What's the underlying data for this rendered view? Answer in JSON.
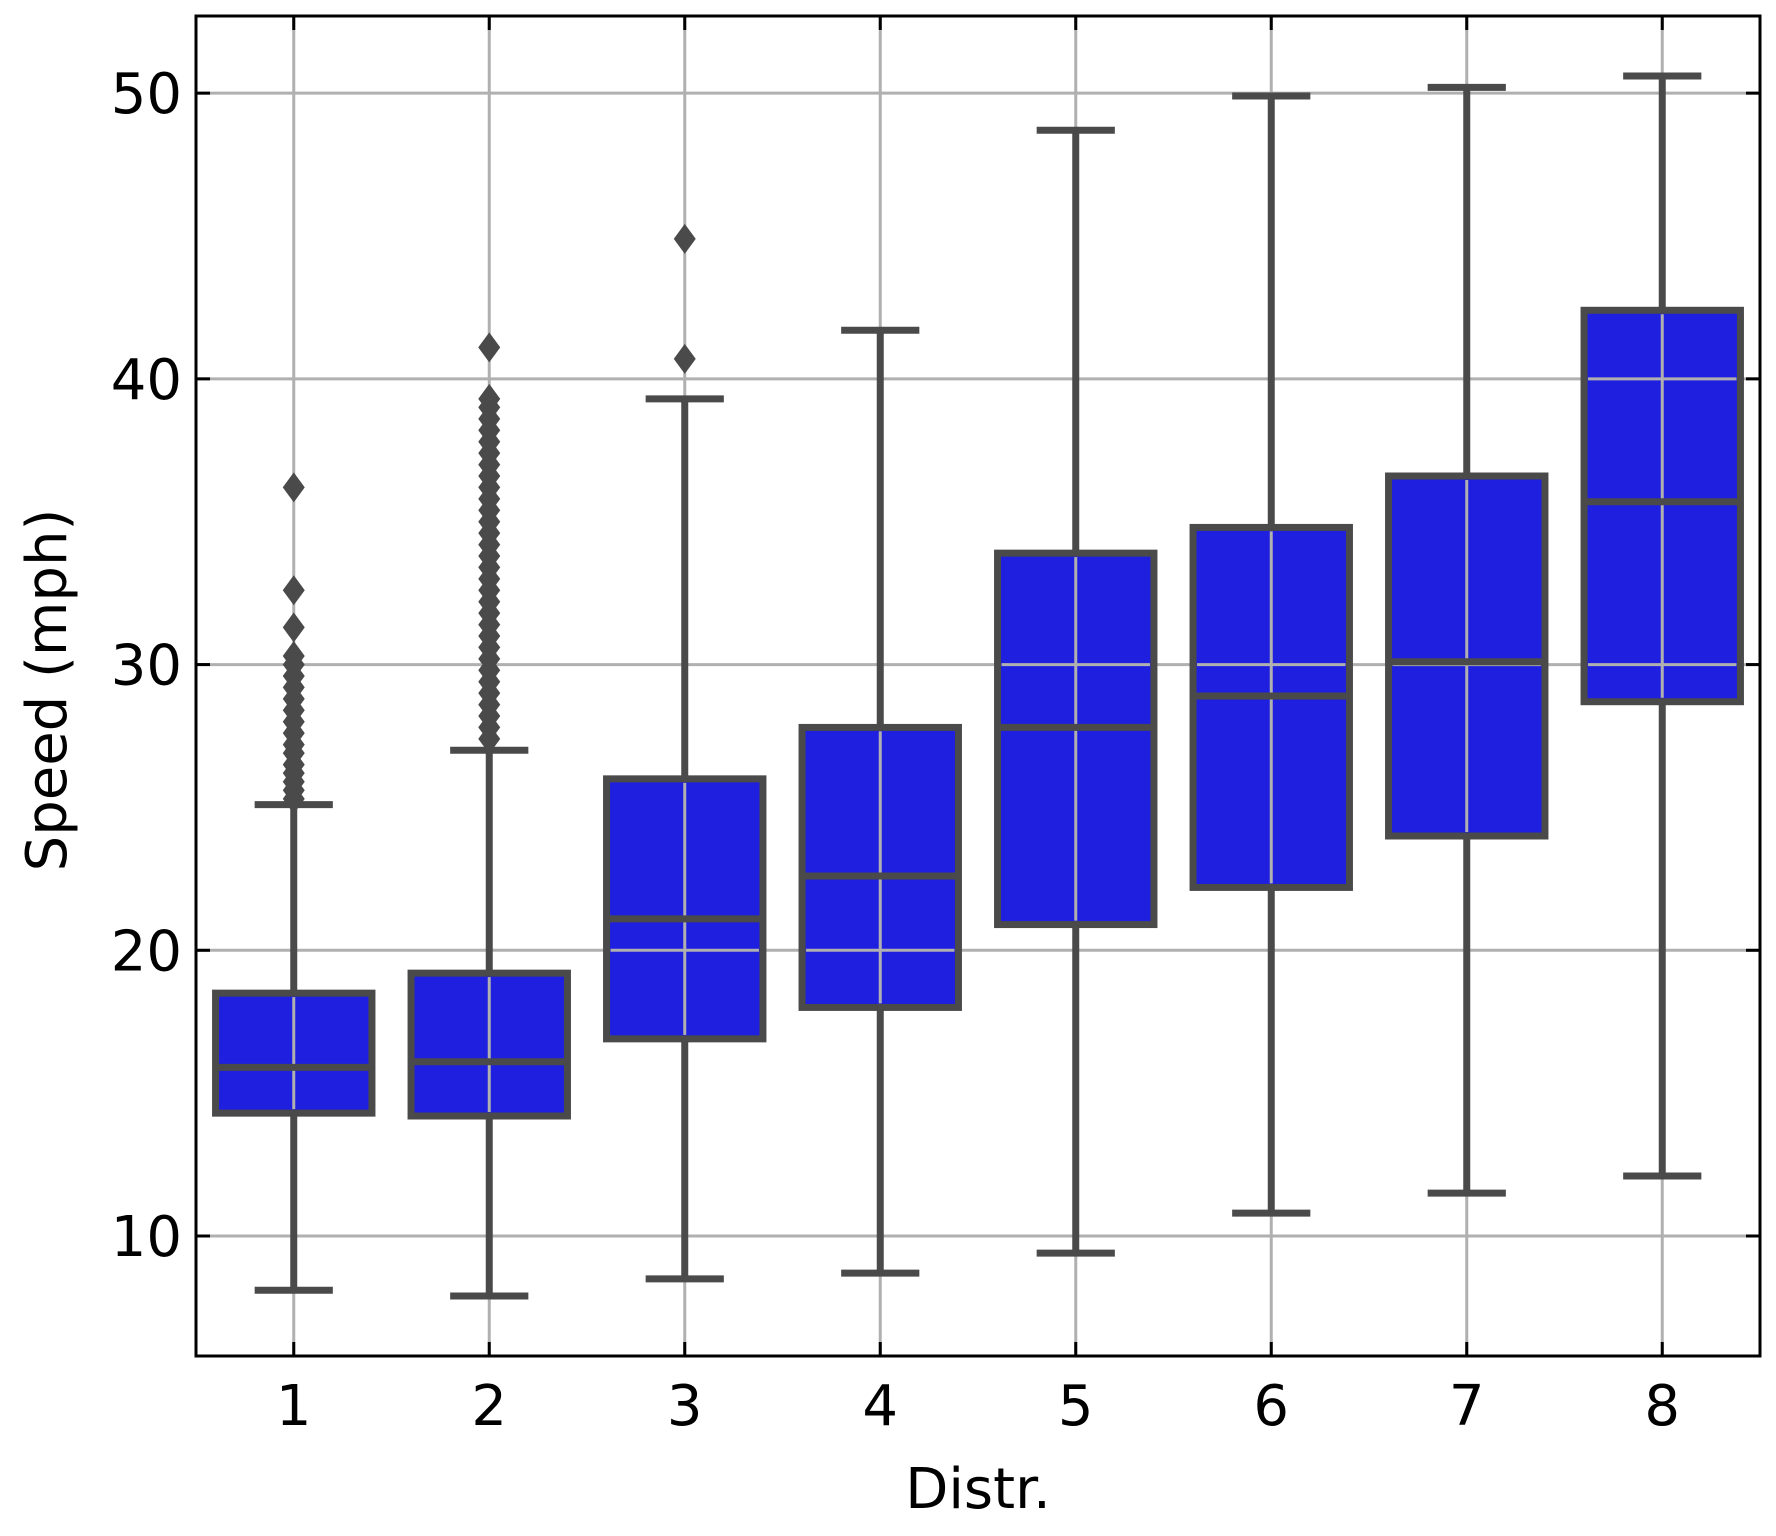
{
  "chart_data": {
    "type": "box",
    "xlabel": "Distr.",
    "ylabel": "Speed (mph)",
    "ylim": [
      5.8,
      52.7
    ],
    "yticks": [
      10,
      20,
      30,
      40,
      50
    ],
    "grid": true,
    "categories": [
      "1",
      "2",
      "3",
      "4",
      "5",
      "6",
      "7",
      "8"
    ],
    "boxes": [
      {
        "category": "1",
        "whisker_low": 8.1,
        "q1": 14.3,
        "median": 15.9,
        "q3": 18.5,
        "whisker_high": 25.1,
        "outliers": [
          25.3,
          25.6,
          25.9,
          26.2,
          26.5,
          26.9,
          27.2,
          27.6,
          28.0,
          28.4,
          28.8,
          29.2,
          29.6,
          30.0,
          30.3,
          31.3,
          32.6,
          36.2
        ]
      },
      {
        "category": "2",
        "whisker_low": 7.9,
        "q1": 14.2,
        "median": 16.1,
        "q3": 19.2,
        "whisker_high": 27.0,
        "outliers": [
          27.4,
          27.8,
          28.2,
          28.6,
          29.0,
          29.4,
          29.8,
          30.2,
          30.6,
          31.0,
          31.4,
          31.8,
          32.2,
          32.6,
          33.0,
          33.4,
          33.8,
          34.2,
          34.6,
          35.0,
          35.4,
          35.8,
          36.2,
          36.6,
          37.0,
          37.4,
          37.8,
          38.2,
          38.6,
          39.0,
          39.3,
          41.1
        ]
      },
      {
        "category": "3",
        "whisker_low": 8.5,
        "q1": 16.9,
        "median": 21.1,
        "q3": 26.0,
        "whisker_high": 39.3,
        "outliers": [
          40.7,
          44.9
        ]
      },
      {
        "category": "4",
        "whisker_low": 8.7,
        "q1": 18.0,
        "median": 22.6,
        "q3": 27.8,
        "whisker_high": 41.7,
        "outliers": []
      },
      {
        "category": "5",
        "whisker_low": 9.4,
        "q1": 20.9,
        "median": 27.8,
        "q3": 33.9,
        "whisker_high": 48.7,
        "outliers": []
      },
      {
        "category": "6",
        "whisker_low": 10.8,
        "q1": 22.2,
        "median": 28.9,
        "q3": 34.8,
        "whisker_high": 49.9,
        "outliers": []
      },
      {
        "category": "7",
        "whisker_low": 11.5,
        "q1": 24.0,
        "median": 30.1,
        "q3": 36.6,
        "whisker_high": 50.2,
        "outliers": []
      },
      {
        "category": "8",
        "whisker_low": 12.1,
        "q1": 28.7,
        "median": 35.7,
        "q3": 42.4,
        "whisker_high": 50.6,
        "outliers": []
      }
    ],
    "colors": {
      "box_fill": "#1f1fe0",
      "box_edge": "#4a4a4a",
      "grid": "#b0b0b0"
    }
  }
}
